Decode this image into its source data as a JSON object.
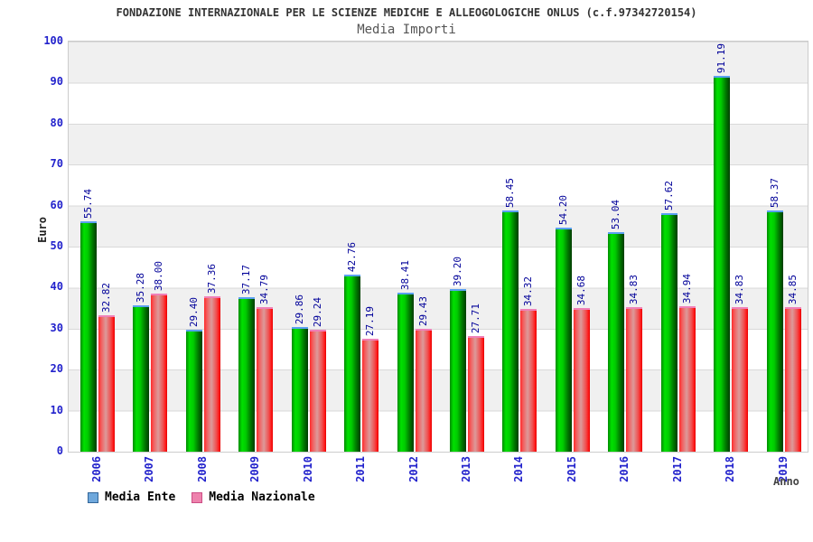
{
  "header": {
    "title": "FONDAZIONE INTERNAZIONALE PER LE SCIENZE MEDICHE E ALLEOGOLOGICHE ONLUS (c.f.97342720154)",
    "subtitle": "Media Importi"
  },
  "chart_data": {
    "type": "bar",
    "title": "Media Importi",
    "xlabel": "Anno",
    "ylabel": "Euro",
    "ylim": [
      0,
      100
    ],
    "ytick_step": 10,
    "grid": true,
    "legend_position": "bottom-left",
    "categories": [
      "2006",
      "2007",
      "2008",
      "2009",
      "2010",
      "2011",
      "2012",
      "2013",
      "2014",
      "2015",
      "2016",
      "2017",
      "2018",
      "2019"
    ],
    "series": [
      {
        "name": "Media Ente",
        "values": [
          55.74,
          35.28,
          29.4,
          37.17,
          29.86,
          42.76,
          38.41,
          39.2,
          58.45,
          54.2,
          53.04,
          57.62,
          91.19,
          58.37
        ]
      },
      {
        "name": "Media Nazionale",
        "values": [
          32.82,
          38.0,
          37.36,
          34.79,
          29.24,
          27.19,
          29.43,
          27.71,
          34.32,
          34.68,
          34.83,
          34.94,
          34.83,
          34.85
        ]
      }
    ]
  },
  "legend": {
    "items": [
      {
        "label": "Media Ente",
        "swatch_color": "#6fa8dc"
      },
      {
        "label": "Media Nazionale",
        "swatch_color": "#ee82ad"
      }
    ]
  },
  "colors": {
    "bar_media_ente": "#00cc00",
    "bar_media_nazionale": "#ee3333",
    "bar_ente_cap": "#5aa0f0",
    "bar_nazionale_cap": "#f080b8",
    "axis_tick_label": "#2222cc",
    "value_label": "#000099",
    "band_gray": "#f0f0f0",
    "gridline": "#d9d9d9",
    "title_text": "#333333",
    "subtitle_text": "#555555"
  }
}
